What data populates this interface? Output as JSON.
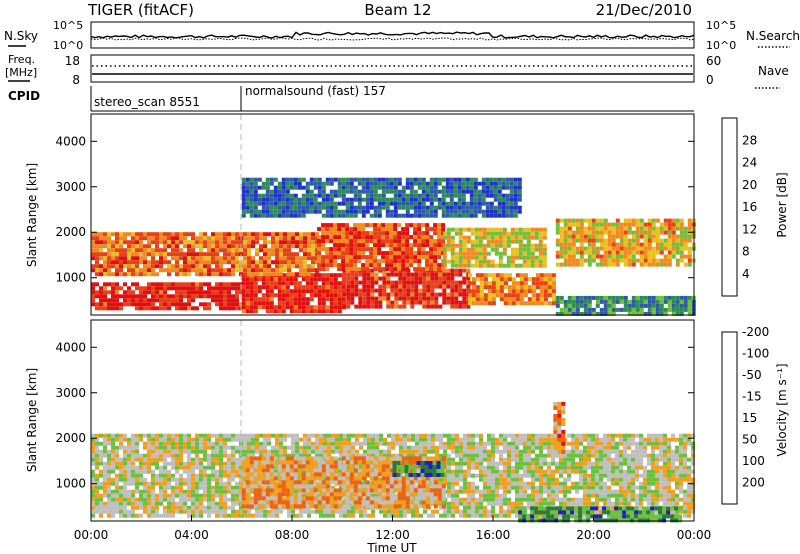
{
  "header": {
    "radar": "TIGER (fitACF)",
    "beam": "Beam 12",
    "date": "21/Dec/2010"
  },
  "status_panels": {
    "nsky_label": "N.Sky",
    "nsky_ticks": [
      "10^5",
      "10^0"
    ],
    "nsearch_label": "N.Search",
    "nsearch_ticks": [
      "10^5",
      "10^0"
    ],
    "freq_label_line1": "Freq.",
    "freq_label_line2": "[MHz]",
    "freq_ticks": [
      "18",
      "8"
    ],
    "nave_label": "Nave",
    "nave_ticks": [
      "60",
      "0"
    ],
    "cpid_label": "CPID",
    "cpid_segments": [
      {
        "name": "stereo_scan 8551",
        "start_hour": 0
      },
      {
        "name": "normalsound (fast) 157",
        "start_hour": 6
      }
    ]
  },
  "colors": {
    "power": [
      "#2030d0",
      "#2f5aa8",
      "#2f8a5a",
      "#6fbf3a",
      "#e8c020",
      "#f08a20",
      "#e84018",
      "#e01010"
    ],
    "velocity": [
      "#2020c0",
      "#2c7a3a",
      "#6cc040",
      "#bfbfbf",
      "#f0a020",
      "#f06010",
      "#e01010"
    ]
  },
  "chart_data": [
    {
      "type": "heatmap",
      "title": "Power",
      "ylabel": "Slant Range [km]",
      "ylim": [
        180,
        4600
      ],
      "xlim_hours": [
        0,
        24
      ],
      "y_ticks": [
        1000,
        2000,
        3000,
        4000
      ],
      "colorbar": {
        "label": "Power [dB]",
        "ticks": [
          "4",
          "8",
          "12",
          "16",
          "20",
          "24",
          "28"
        ]
      },
      "echo_regions": [
        {
          "from_h": 0.0,
          "to_h": 6.0,
          "range_min": 300,
          "range_max": 900,
          "level": 0.92
        },
        {
          "from_h": 6.0,
          "to_h": 10.0,
          "range_min": 300,
          "range_max": 1100,
          "level": 0.9
        },
        {
          "from_h": 10.0,
          "to_h": 15.0,
          "range_min": 400,
          "range_max": 1200,
          "level": 0.88
        },
        {
          "from_h": 15.0,
          "to_h": 18.5,
          "range_min": 400,
          "range_max": 1100,
          "level": 0.7
        },
        {
          "from_h": 0.0,
          "to_h": 9.0,
          "range_min": 1100,
          "range_max": 2000,
          "level": 0.75
        },
        {
          "from_h": 9.0,
          "to_h": 14.0,
          "range_min": 1200,
          "range_max": 2200,
          "level": 0.8
        },
        {
          "from_h": 14.0,
          "to_h": 18.0,
          "range_min": 1300,
          "range_max": 2100,
          "level": 0.55
        },
        {
          "from_h": 18.5,
          "to_h": 24.0,
          "range_min": 1300,
          "range_max": 2300,
          "level": 0.6
        },
        {
          "from_h": 6.0,
          "to_h": 17.0,
          "range_min": 2400,
          "range_max": 3200,
          "level": 0.2
        },
        {
          "from_h": 18.5,
          "to_h": 24.0,
          "range_min": 200,
          "range_max": 600,
          "level": 0.3
        }
      ]
    },
    {
      "type": "heatmap",
      "title": "Velocity",
      "ylabel": "Slant Range [km]",
      "xlabel": "Time UT",
      "ylim": [
        180,
        4600
      ],
      "xlim_hours": [
        0,
        24
      ],
      "y_ticks": [
        1000,
        2000,
        3000,
        4000
      ],
      "x_ticks": [
        "00:00",
        "04:00",
        "08:00",
        "12:00",
        "16:00",
        "20:00",
        "00:00"
      ],
      "colorbar": {
        "label": "Velocity [m s⁻¹]",
        "ticks": [
          "-200",
          "-100",
          "-50",
          "-15",
          "15",
          "50",
          "100",
          "200"
        ]
      },
      "echo_regions": [
        {
          "from_h": 0.0,
          "to_h": 24.0,
          "range_min": 300,
          "range_max": 2100,
          "level": 0.5
        },
        {
          "from_h": 6.0,
          "to_h": 14.0,
          "range_min": 500,
          "range_max": 1600,
          "level": 0.65
        },
        {
          "from_h": 12.0,
          "to_h": 14.0,
          "range_min": 1200,
          "range_max": 1500,
          "level": 0.2
        },
        {
          "from_h": 17.0,
          "to_h": 23.5,
          "range_min": 200,
          "range_max": 500,
          "level": 0.25
        },
        {
          "from_h": 18.4,
          "to_h": 18.8,
          "range_min": 1700,
          "range_max": 2800,
          "level": 0.72
        }
      ]
    }
  ]
}
